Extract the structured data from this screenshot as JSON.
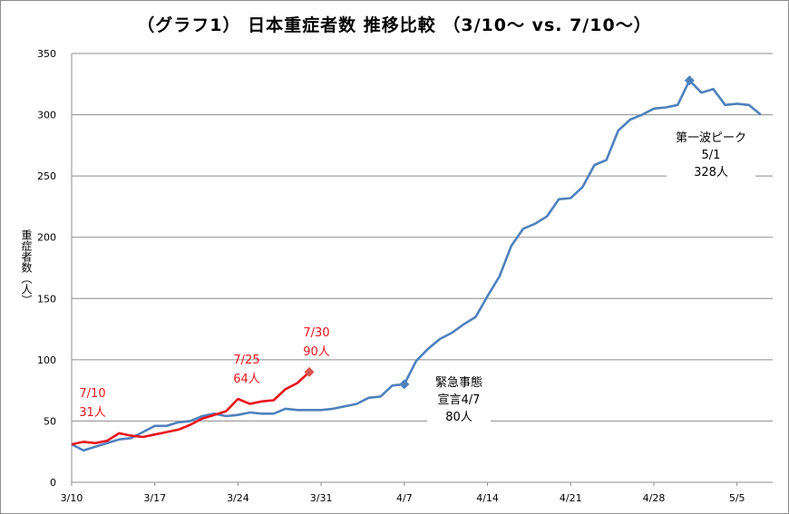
{
  "chart_data": {
    "type": "line",
    "title": "（グラフ1） 日本重症者数 推移比較 （3/10～ vs. 7/10～）",
    "ylabel": "重症者数（人）",
    "xlabel": "",
    "ylim": [
      0,
      350
    ],
    "yticks": [
      0,
      50,
      100,
      150,
      200,
      250,
      300,
      350
    ],
    "grid": true,
    "x_tick_labels": [
      "3/10",
      "3/17",
      "3/24",
      "3/31",
      "4/7",
      "4/14",
      "4/21",
      "4/28",
      "5/5"
    ],
    "series": [
      {
        "color": "#4f81bd",
        "start_label": "3/10",
        "values": [
          31,
          26,
          29,
          32,
          35,
          36,
          41,
          46,
          46,
          49,
          50,
          54,
          56,
          54,
          55,
          57,
          56,
          56,
          60,
          59,
          59,
          59,
          60,
          62,
          64,
          69,
          70,
          79,
          80,
          99,
          109,
          117,
          122,
          129,
          135,
          152,
          168,
          193,
          207,
          211,
          217,
          231,
          232,
          241,
          259,
          263,
          287,
          296,
          300,
          305,
          306,
          308,
          328,
          318,
          321,
          308,
          309,
          308,
          300
        ]
      },
      {
        "color": "#e8141b",
        "start_label": "7/10",
        "values": [
          31,
          33,
          32,
          34,
          40,
          38,
          37,
          39,
          41,
          43,
          47,
          52,
          55,
          58,
          68,
          64,
          66,
          67,
          76,
          81,
          90
        ]
      }
    ],
    "annotations": [
      {
        "id": "july10",
        "series": 1,
        "index": 0,
        "lines": [
          "7/10",
          "31人"
        ],
        "color": "#e8141b",
        "marker": false
      },
      {
        "id": "july25",
        "series": 1,
        "index": 15,
        "lines": [
          "7/25",
          "64人"
        ],
        "color": "#e8141b",
        "marker": false
      },
      {
        "id": "july30",
        "series": 1,
        "index": 20,
        "lines": [
          "7/30",
          "90人"
        ],
        "color": "#e8141b",
        "marker": true
      },
      {
        "id": "emergency",
        "series": 0,
        "index": 28,
        "lines": [
          "緊急事態",
          "宣言4/7",
          "80人"
        ],
        "color": "#000000",
        "marker": true
      },
      {
        "id": "peak",
        "series": 0,
        "index": 52,
        "lines": [
          "第一波ピーク",
          "5/1",
          "328人"
        ],
        "color": "#000000",
        "marker": true
      }
    ]
  }
}
